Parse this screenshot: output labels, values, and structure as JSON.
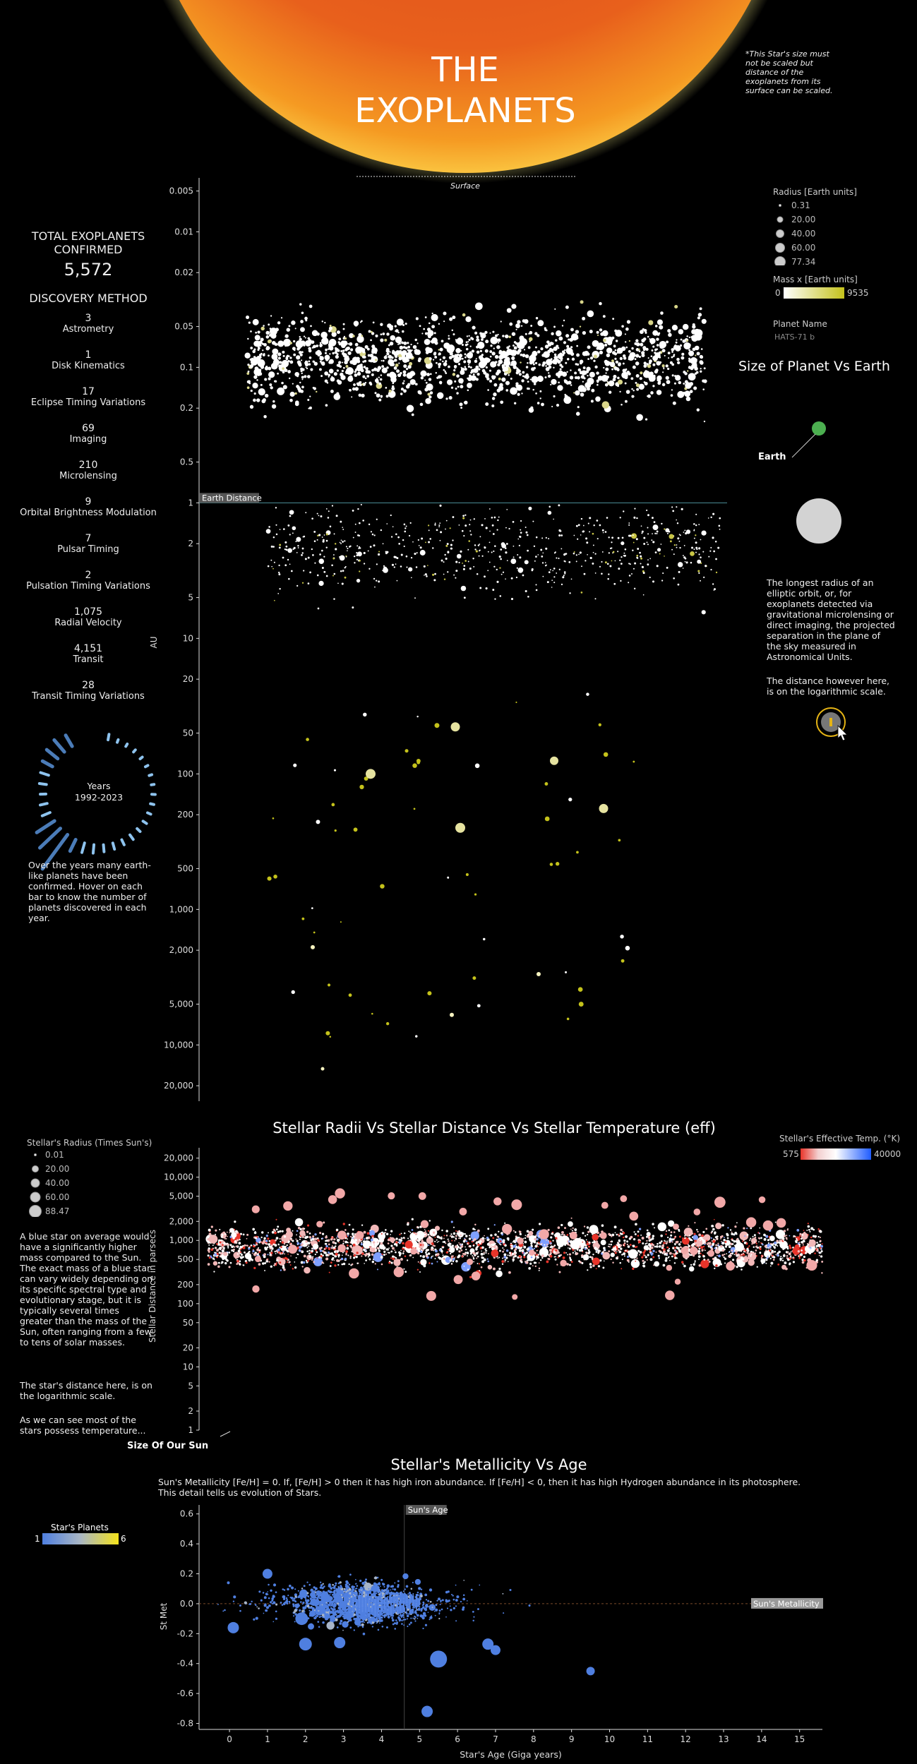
{
  "header": {
    "title_line1": "THE",
    "title_line2": "EXOPLANETS",
    "note": "*This Star's size must not be scaled but distance of the exoplanets from its surface can be scaled.",
    "surface_label": "Surface"
  },
  "summary": {
    "total_label": "TOTAL EXOPLANETS CONFIRMED",
    "total_value": "5,572",
    "methods_title": "DISCOVERY METHOD",
    "methods": [
      {
        "count": "3",
        "name": "Astrometry"
      },
      {
        "count": "1",
        "name": "Disk Kinematics"
      },
      {
        "count": "17",
        "name": "Eclipse Timing Variations"
      },
      {
        "count": "69",
        "name": "Imaging"
      },
      {
        "count": "210",
        "name": "Microlensing"
      },
      {
        "count": "9",
        "name": "Orbital Brightness Modulation"
      },
      {
        "count": "7",
        "name": "Pulsar Timing"
      },
      {
        "count": "2",
        "name": "Pulsation Timing Variations"
      },
      {
        "count": "1,075",
        "name": "Radial Velocity"
      },
      {
        "count": "4,151",
        "name": "Transit"
      },
      {
        "count": "28",
        "name": "Transit Timing Variations"
      }
    ],
    "years_label": "Years",
    "years_range": "1992-2023",
    "years_text": "Over the years many earth-like planets have been confirmed. Hover on each bar to know the number of planets discovered in each year."
  },
  "legend_top": {
    "radius_title": "Radius [Earth units]",
    "radius_values": [
      "0.31",
      "20.00",
      "40.00",
      "60.00",
      "77.34"
    ],
    "mass_title": "Mass x [Earth units]",
    "mass_min": "0",
    "mass_max": "9535",
    "planet_name_title": "Planet Name",
    "planet_name_value": "HATS-71 b",
    "size_title": "Size of Planet Vs Earth",
    "earth_label": "Earth",
    "explain1": "The longest radius of an elliptic orbit, or, for exoplanets detected via gravitational microlensing or direct imaging, the projected separation in the plane of the sky measured in Astronomical Units.",
    "explain2": "The distance however here, is on the logarithmic scale."
  },
  "colors": {
    "sun_core": "#e8541a",
    "sun_edge": "#f7a11e",
    "glow": "#f6f08a",
    "planet_white": "#ffffff",
    "planet_yellow": "#c4c21b",
    "earth": "#4caf50",
    "star_red": "#e8342a",
    "star_pink": "#f2a8a8",
    "star_blue": "#1f5cff",
    "met_blue": "#4f7fe0",
    "met_yellow": "#f5e31b"
  },
  "chart_data": [
    {
      "type": "scatter",
      "title": "",
      "ylabel": "AU",
      "yscale": "log",
      "ylim": [
        0.004,
        26000
      ],
      "yticks": [
        "0.005",
        "0.01",
        "0.02",
        "0.05",
        "0.1",
        "0.2",
        "0.5",
        "1",
        "2",
        "5",
        "10",
        "20",
        "50",
        "100",
        "200",
        "500",
        "1,000",
        "2,000",
        "5,000",
        "10,000",
        "20,000"
      ],
      "ytick_values": [
        0.005,
        0.01,
        0.02,
        0.05,
        0.1,
        0.2,
        0.5,
        1,
        2,
        5,
        10,
        20,
        50,
        100,
        200,
        500,
        1000,
        2000,
        5000,
        10000,
        20000
      ],
      "reference_line": {
        "value": 1,
        "label": "Earth Distance"
      },
      "highlighted_points": [
        {
          "au": 100,
          "radius": 14
        },
        {
          "au": 45,
          "radius": 13
        },
        {
          "au": 80,
          "radius": 12
        },
        {
          "au": 180,
          "radius": 13
        },
        {
          "au": 250,
          "radius": 14
        },
        {
          "au": 1900,
          "radius": 6
        },
        {
          "au": 15000,
          "radius": 5
        },
        {
          "au": 6000,
          "radius": 6
        },
        {
          "au": 3000,
          "radius": 6
        }
      ]
    },
    {
      "type": "scatter",
      "title": "Stellar Radii Vs Stellar Distance Vs Stellar Temperature (eff)",
      "ylabel": "Stellar Distance in parsecs",
      "yscale": "log",
      "ylim": [
        1,
        25000
      ],
      "yticks": [
        "20,000",
        "10,000",
        "5,000",
        "2,000",
        "1,000",
        "500",
        "200",
        "100",
        "50",
        "20",
        "10",
        "5",
        "2",
        "1"
      ],
      "ytick_values": [
        20000,
        10000,
        5000,
        2000,
        1000,
        500,
        200,
        100,
        50,
        20,
        10,
        5,
        2,
        1
      ],
      "radius_title": "Stellar's Radius (Times Sun's)",
      "radius_values": [
        "0.01",
        "20.00",
        "40.00",
        "60.00",
        "88.47"
      ],
      "temp_title": "Stellar's Effective Temp. (°K)",
      "temp_min": "575",
      "temp_max": "40000",
      "sun_label": "Size Of Our Sun",
      "text1": "A blue star on average would have a significantly higher mass compared to the Sun. The exact mass of a blue star can vary widely depending on its specific spectral type and evolutionary stage, but it is typically several times greater than the mass of the Sun, often ranging from a few to tens of solar masses.",
      "text2": "The star's distance here, is on the logarithmic scale.",
      "text3": "As we can see most of the stars possess temperature..."
    },
    {
      "type": "scatter",
      "title": "Stellar's Metallicity Vs Age",
      "subtitle": "Sun's Metallicity [Fe/H] = 0.  If, [Fe/H] > 0 then it has high iron abundance. If [Fe/H] < 0, then it has high Hydrogen abundance in its photosphere. This detail tells us evolution of Stars.",
      "xlabel": "Star's Age (Giga years)",
      "ylabel": "St Met",
      "xlim": [
        -0.8,
        15.6
      ],
      "ylim": [
        -0.84,
        0.66
      ],
      "xticks": [
        "0",
        "1",
        "2",
        "3",
        "4",
        "5",
        "6",
        "7",
        "8",
        "9",
        "10",
        "11",
        "12",
        "13",
        "14",
        "15"
      ],
      "yticks": [
        "0.6",
        "0.4",
        "0.2",
        "0.0",
        "-0.2",
        "-0.4",
        "-0.6",
        "-0.8"
      ],
      "ytick_values": [
        0.6,
        0.4,
        0.2,
        0,
        -0.2,
        -0.4,
        -0.6,
        -0.8
      ],
      "sun_age": {
        "value": 4.6,
        "label": "Sun's Age"
      },
      "sun_metallicity": {
        "value": 0,
        "label": "Sun's Metallicity"
      },
      "planets_legend_title": "Star's  Planets",
      "planets_min": "1",
      "planets_max": "6",
      "highlighted_points": [
        {
          "age": 5.5,
          "met": -0.37,
          "size": 12
        },
        {
          "age": 5.2,
          "met": -0.72,
          "size": 8
        },
        {
          "age": 9.5,
          "met": -0.45,
          "size": 6
        },
        {
          "age": 6.8,
          "met": -0.27,
          "size": 8
        },
        {
          "age": 7.0,
          "met": -0.31,
          "size": 7
        },
        {
          "age": 0.1,
          "met": -0.16,
          "size": 8
        },
        {
          "age": 2.0,
          "met": -0.27,
          "size": 9
        },
        {
          "age": 1.9,
          "met": -0.1,
          "size": 9
        },
        {
          "age": 2.9,
          "met": -0.26,
          "size": 8
        },
        {
          "age": 1.0,
          "met": 0.2,
          "size": 7
        }
      ]
    }
  ]
}
